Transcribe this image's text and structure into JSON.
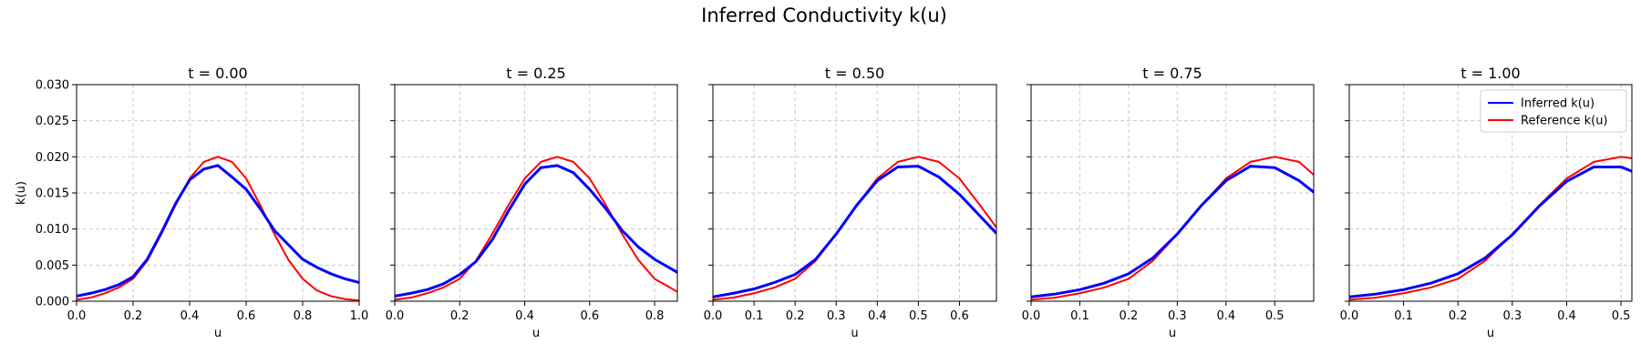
{
  "suptitle": "Inferred Conductivity k(u)",
  "colors": {
    "inferred": "#0000ff",
    "reference": "#ff0000",
    "grid": "#cccccc",
    "axis": "#000000"
  },
  "legend": {
    "placement": "top-right",
    "panel": 4,
    "inferred_label": "Inferred k(u)",
    "reference_label": "Reference k(u)"
  },
  "chart_data": [
    {
      "type": "line",
      "title": "t = 0.00",
      "xlabel": "u",
      "ylabel": "k(u)",
      "xlim": [
        0.0,
        1.0
      ],
      "ylim": [
        0.0,
        0.03
      ],
      "xticks": [
        0.0,
        0.2,
        0.4,
        0.6,
        0.8,
        1.0
      ],
      "xtick_labels": [
        "0.0",
        "0.2",
        "0.4",
        "0.6",
        "0.8",
        "1.0"
      ],
      "yticks": [
        0.0,
        0.005,
        0.01,
        0.015,
        0.02,
        0.025,
        0.03
      ],
      "ytick_labels": [
        "0.000",
        "0.005",
        "0.010",
        "0.015",
        "0.020",
        "0.025",
        "0.030"
      ],
      "grid": true,
      "series": [
        {
          "name": "Inferred k(u)",
          "color": "#0000ff",
          "x": [
            0.0,
            0.05,
            0.1,
            0.15,
            0.2,
            0.25,
            0.3,
            0.35,
            0.4,
            0.45,
            0.5,
            0.55,
            0.6,
            0.65,
            0.7,
            0.75,
            0.8,
            0.85,
            0.9,
            0.95,
            1.0
          ],
          "y": [
            0.0007,
            0.0011,
            0.0016,
            0.0023,
            0.0034,
            0.0058,
            0.0095,
            0.0135,
            0.0168,
            0.0183,
            0.0188,
            0.0172,
            0.0155,
            0.0128,
            0.0098,
            0.0078,
            0.0058,
            0.0047,
            0.0038,
            0.0031,
            0.0026
          ]
        },
        {
          "name": "Reference k(u)",
          "color": "#ff0000",
          "x": [
            0.0,
            0.05,
            0.1,
            0.15,
            0.2,
            0.25,
            0.3,
            0.35,
            0.4,
            0.45,
            0.5,
            0.55,
            0.6,
            0.65,
            0.7,
            0.75,
            0.8,
            0.85,
            0.9,
            0.95,
            1.0
          ],
          "y": [
            0.0002,
            0.0005,
            0.0011,
            0.0019,
            0.0031,
            0.0056,
            0.0093,
            0.0133,
            0.017,
            0.0193,
            0.02,
            0.0193,
            0.017,
            0.0133,
            0.0093,
            0.0057,
            0.0031,
            0.0015,
            0.0007,
            0.0003,
            0.0001
          ]
        }
      ]
    },
    {
      "type": "line",
      "title": "t = 0.25",
      "xlabel": "u",
      "ylabel": "",
      "xlim": [
        0.0,
        0.87
      ],
      "ylim": [
        0.0,
        0.03
      ],
      "xticks": [
        0.0,
        0.2,
        0.4,
        0.6,
        0.8
      ],
      "xtick_labels": [
        "0.0",
        "0.2",
        "0.4",
        "0.6",
        "0.8"
      ],
      "yticks": [
        0.0,
        0.005,
        0.01,
        0.015,
        0.02,
        0.025,
        0.03
      ],
      "ytick_labels": [],
      "grid": true,
      "series": [
        {
          "name": "Inferred k(u)",
          "color": "#0000ff",
          "x": [
            0.0,
            0.05,
            0.1,
            0.15,
            0.2,
            0.25,
            0.3,
            0.35,
            0.4,
            0.45,
            0.5,
            0.55,
            0.6,
            0.65,
            0.7,
            0.75,
            0.8,
            0.87
          ],
          "y": [
            0.0007,
            0.0011,
            0.0016,
            0.0024,
            0.0037,
            0.0055,
            0.0085,
            0.0125,
            0.0162,
            0.0185,
            0.0188,
            0.0178,
            0.0155,
            0.0128,
            0.0098,
            0.0075,
            0.0058,
            0.004
          ]
        },
        {
          "name": "Reference k(u)",
          "color": "#ff0000",
          "x": [
            0.0,
            0.05,
            0.1,
            0.15,
            0.2,
            0.25,
            0.3,
            0.35,
            0.4,
            0.45,
            0.5,
            0.55,
            0.6,
            0.65,
            0.7,
            0.75,
            0.8,
            0.87
          ],
          "y": [
            0.0002,
            0.0005,
            0.0011,
            0.0019,
            0.0031,
            0.0056,
            0.0093,
            0.0133,
            0.017,
            0.0193,
            0.02,
            0.0193,
            0.017,
            0.0133,
            0.0093,
            0.0057,
            0.0031,
            0.0013
          ]
        }
      ]
    },
    {
      "type": "line",
      "title": "t = 0.50",
      "xlabel": "u",
      "ylabel": "",
      "xlim": [
        0.0,
        0.69
      ],
      "ylim": [
        0.0,
        0.03
      ],
      "xticks": [
        0.0,
        0.1,
        0.2,
        0.3,
        0.4,
        0.5,
        0.6
      ],
      "xtick_labels": [
        "0.0",
        "0.1",
        "0.2",
        "0.3",
        "0.4",
        "0.5",
        "0.6"
      ],
      "yticks": [
        0.0,
        0.005,
        0.01,
        0.015,
        0.02,
        0.025,
        0.03
      ],
      "ytick_labels": [],
      "grid": true,
      "series": [
        {
          "name": "Inferred k(u)",
          "color": "#0000ff",
          "x": [
            0.0,
            0.05,
            0.1,
            0.15,
            0.2,
            0.25,
            0.3,
            0.35,
            0.4,
            0.45,
            0.5,
            0.55,
            0.6,
            0.65,
            0.69
          ],
          "y": [
            0.0006,
            0.0011,
            0.0017,
            0.0026,
            0.0037,
            0.0058,
            0.0093,
            0.0133,
            0.0167,
            0.0186,
            0.0187,
            0.0172,
            0.0148,
            0.0118,
            0.0094
          ]
        },
        {
          "name": "Reference k(u)",
          "color": "#ff0000",
          "x": [
            0.0,
            0.05,
            0.1,
            0.15,
            0.2,
            0.25,
            0.3,
            0.35,
            0.4,
            0.45,
            0.5,
            0.55,
            0.6,
            0.65,
            0.69
          ],
          "y": [
            0.0002,
            0.0005,
            0.0011,
            0.0019,
            0.0031,
            0.0056,
            0.0093,
            0.0133,
            0.017,
            0.0193,
            0.02,
            0.0193,
            0.017,
            0.0133,
            0.0102
          ]
        }
      ]
    },
    {
      "type": "line",
      "title": "t = 0.75",
      "xlabel": "u",
      "ylabel": "",
      "xlim": [
        0.0,
        0.58
      ],
      "ylim": [
        0.0,
        0.03
      ],
      "xticks": [
        0.0,
        0.1,
        0.2,
        0.3,
        0.4,
        0.5
      ],
      "xtick_labels": [
        "0.0",
        "0.1",
        "0.2",
        "0.3",
        "0.4",
        "0.5"
      ],
      "yticks": [
        0.0,
        0.005,
        0.01,
        0.015,
        0.02,
        0.025,
        0.03
      ],
      "ytick_labels": [],
      "grid": true,
      "series": [
        {
          "name": "Inferred k(u)",
          "color": "#0000ff",
          "x": [
            0.0,
            0.05,
            0.1,
            0.15,
            0.2,
            0.25,
            0.3,
            0.35,
            0.4,
            0.45,
            0.5,
            0.55,
            0.58
          ],
          "y": [
            0.0006,
            0.001,
            0.0016,
            0.0025,
            0.0038,
            0.006,
            0.0093,
            0.0133,
            0.0167,
            0.0187,
            0.0185,
            0.0167,
            0.0151
          ]
        },
        {
          "name": "Reference k(u)",
          "color": "#ff0000",
          "x": [
            0.0,
            0.05,
            0.1,
            0.15,
            0.2,
            0.25,
            0.3,
            0.35,
            0.4,
            0.45,
            0.5,
            0.55,
            0.58
          ],
          "y": [
            0.0002,
            0.0005,
            0.0011,
            0.0019,
            0.0031,
            0.0056,
            0.0093,
            0.0133,
            0.017,
            0.0193,
            0.02,
            0.0193,
            0.0175
          ]
        }
      ]
    },
    {
      "type": "line",
      "title": "t = 1.00",
      "xlabel": "u",
      "ylabel": "",
      "xlim": [
        0.0,
        0.52
      ],
      "ylim": [
        0.0,
        0.03
      ],
      "xticks": [
        0.0,
        0.1,
        0.2,
        0.3,
        0.4,
        0.5
      ],
      "xtick_labels": [
        "0.0",
        "0.1",
        "0.2",
        "0.3",
        "0.4",
        "0.5"
      ],
      "yticks": [
        0.0,
        0.005,
        0.01,
        0.015,
        0.02,
        0.025,
        0.03
      ],
      "ytick_labels": [],
      "grid": true,
      "series": [
        {
          "name": "Inferred k(u)",
          "color": "#0000ff",
          "x": [
            0.0,
            0.05,
            0.1,
            0.15,
            0.2,
            0.25,
            0.3,
            0.35,
            0.4,
            0.45,
            0.5,
            0.52
          ],
          "y": [
            0.0006,
            0.001,
            0.0016,
            0.0025,
            0.0038,
            0.006,
            0.0092,
            0.0132,
            0.0166,
            0.0186,
            0.0186,
            0.018
          ]
        },
        {
          "name": "Reference k(u)",
          "color": "#ff0000",
          "x": [
            0.0,
            0.05,
            0.1,
            0.15,
            0.2,
            0.25,
            0.3,
            0.35,
            0.4,
            0.45,
            0.5,
            0.52
          ],
          "y": [
            0.0002,
            0.0005,
            0.0011,
            0.0019,
            0.0031,
            0.0056,
            0.0093,
            0.0133,
            0.017,
            0.0193,
            0.02,
            0.0198
          ]
        }
      ]
    }
  ]
}
